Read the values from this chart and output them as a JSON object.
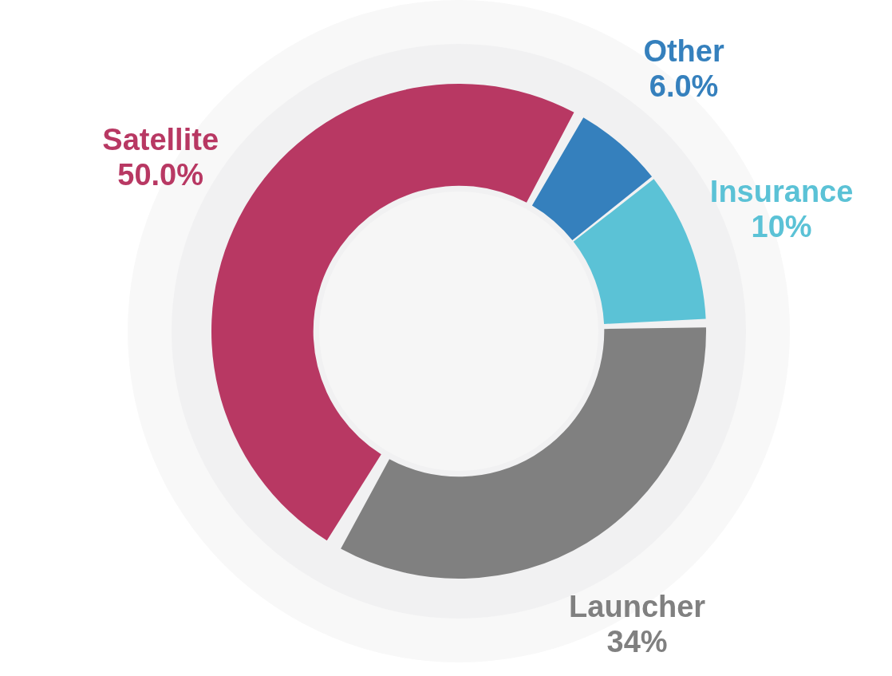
{
  "chart_data": {
    "type": "donut",
    "categories": [
      "Other",
      "Insurance",
      "Launcher",
      "Satellite"
    ],
    "values": [
      6,
      10,
      34,
      50
    ],
    "colors": [
      "#3580bd",
      "#5bc2d6",
      "#808080",
      "#b83863"
    ],
    "value_labels": [
      "6.0%",
      "10%",
      "34%",
      "50.0%"
    ],
    "legend": false
  }
}
